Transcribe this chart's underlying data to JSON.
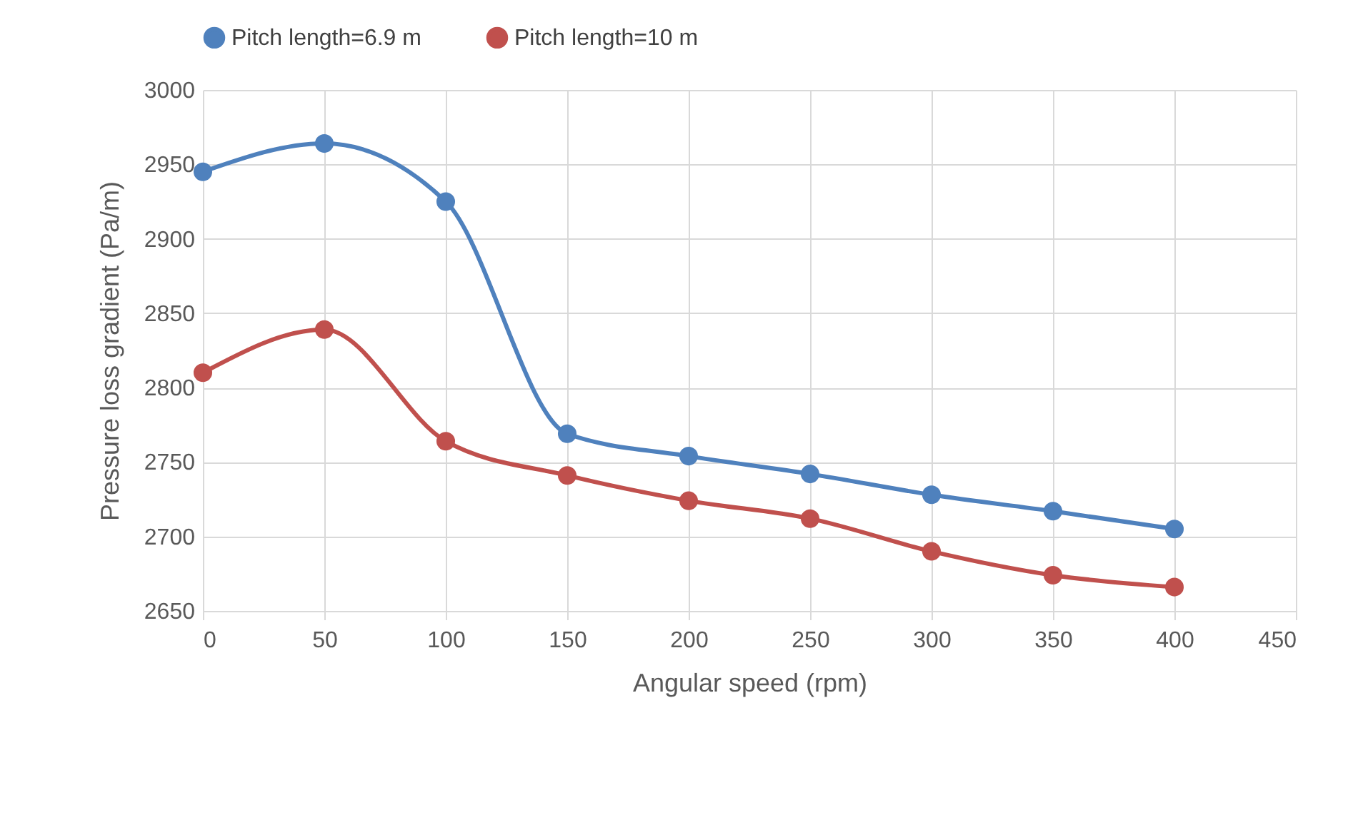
{
  "chart_data": {
    "type": "line",
    "xlabel": "Angular speed (rpm)",
    "ylabel": "Pressure loss gradient (Pa/m)",
    "x": [
      0,
      50,
      100,
      150,
      200,
      250,
      300,
      350,
      400
    ],
    "series": [
      {
        "name": "Pitch length=6.9 m",
        "color": "#4f81bd",
        "values": [
          2945,
          2964,
          2925,
          2769,
          2754,
          2742,
          2728,
          2717,
          2705
        ]
      },
      {
        "name": "Pitch length=10 m",
        "color": "#c0504d",
        "values": [
          2810,
          2839,
          2764,
          2741,
          2724,
          2712,
          2690,
          2674,
          2666
        ]
      }
    ],
    "xlim": [
      0,
      450
    ],
    "xticks": [
      0,
      50,
      100,
      150,
      200,
      250,
      300,
      350,
      400,
      450
    ],
    "ylim": [
      2650,
      3000
    ],
    "yticks": [
      2650,
      2700,
      2750,
      2800,
      2850,
      2900,
      2950,
      3000
    ],
    "grid": true,
    "legend": "top",
    "marker": "circle",
    "line_style": "solid"
  }
}
